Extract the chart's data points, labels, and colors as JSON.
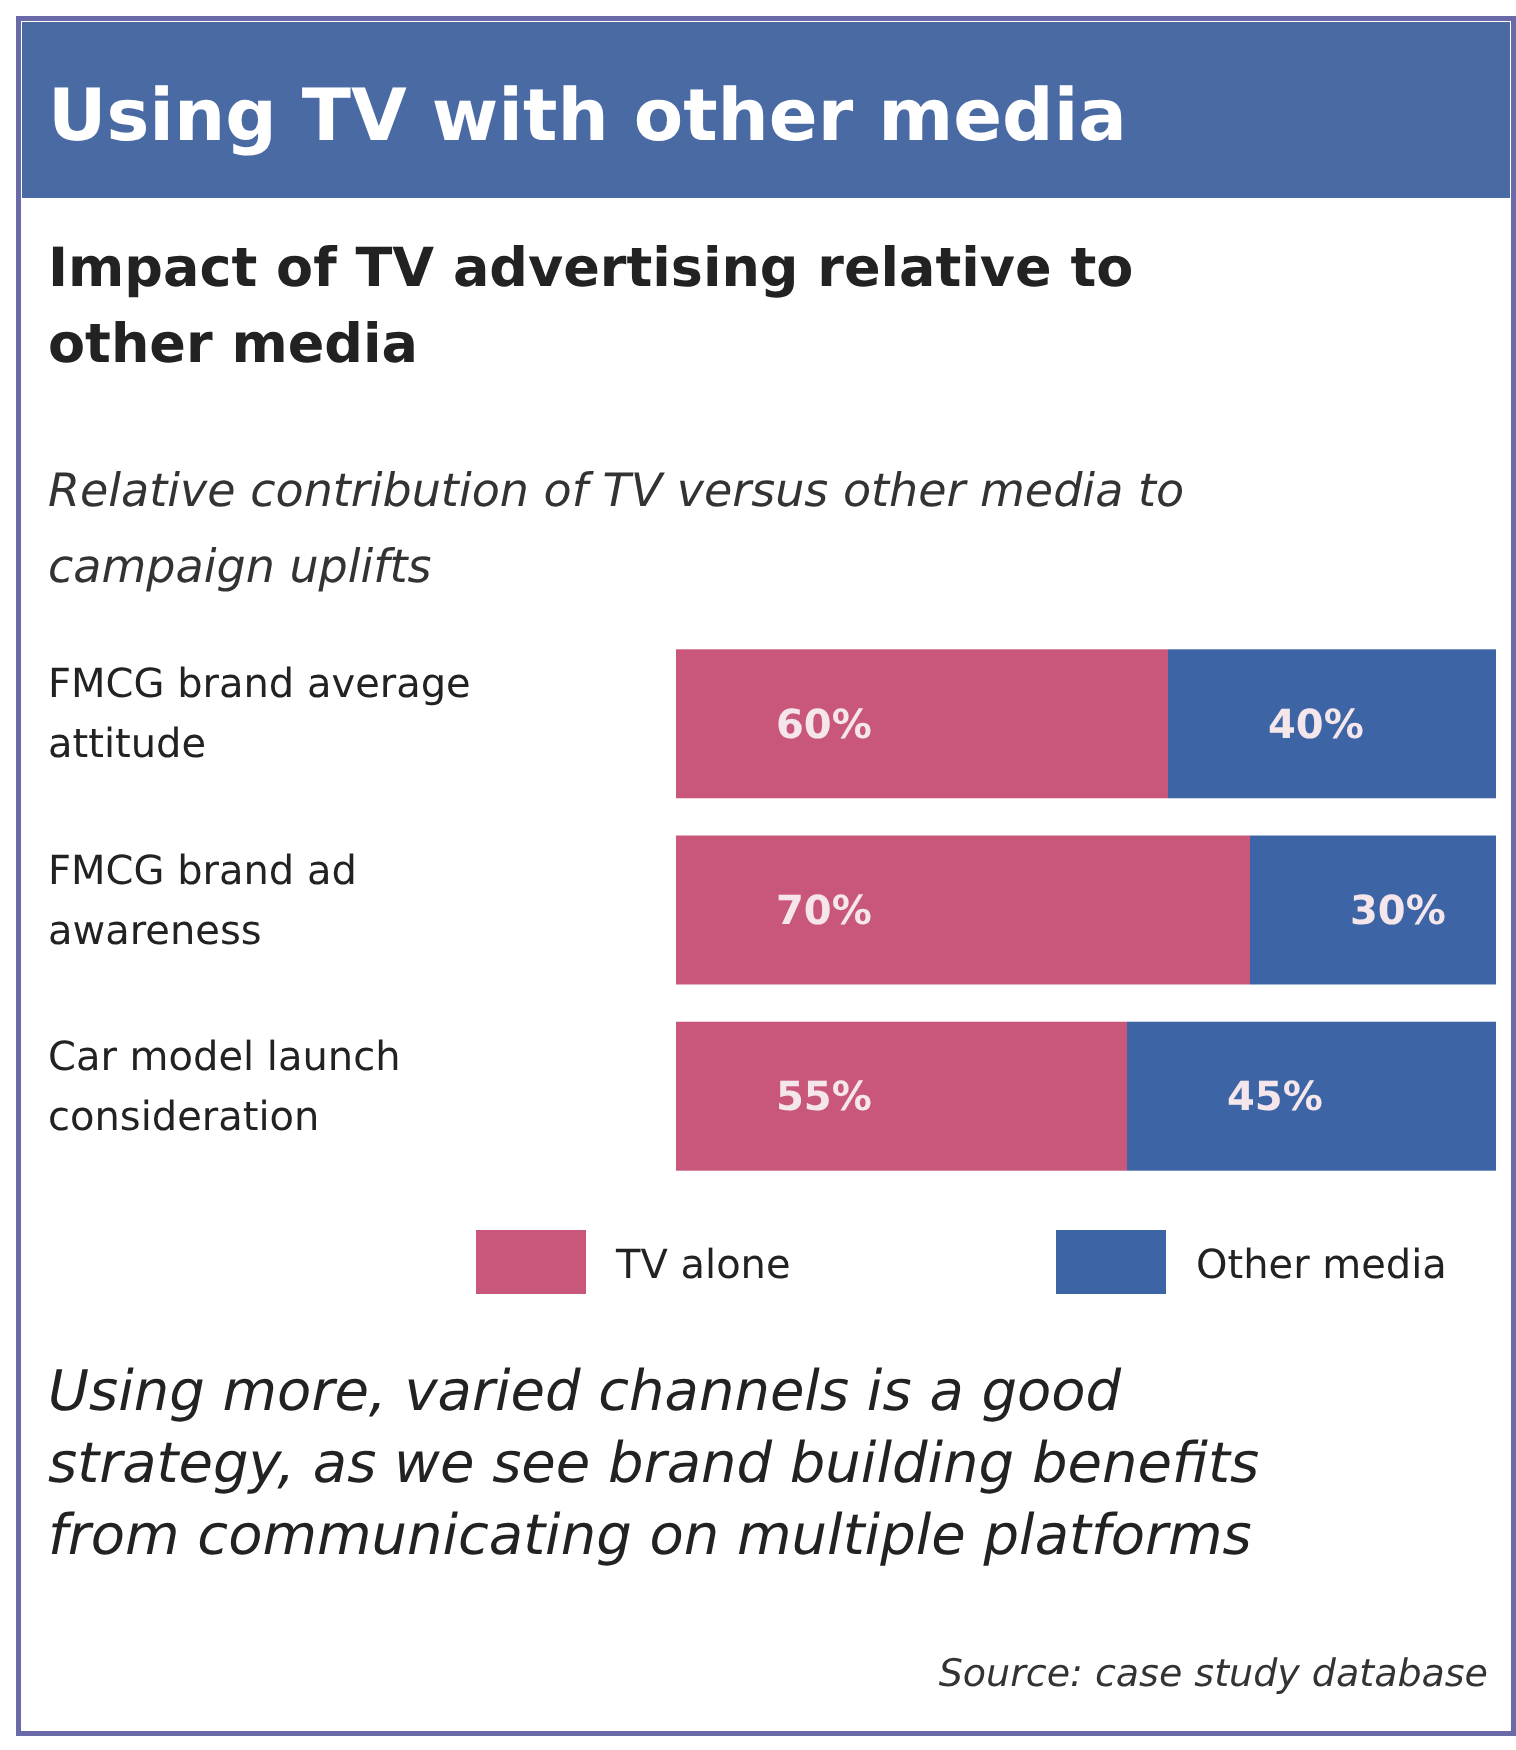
{
  "chart_data": {
    "type": "bar",
    "orientation": "horizontal",
    "stacked": true,
    "title": "Using TV with other media",
    "subtitle": "Impact of TV advertising relative to other media",
    "categories": [
      "FMCG brand average attitude",
      "FMCG brand ad awareness",
      "Car model launch consideration"
    ],
    "series": [
      {
        "name": "TV alone",
        "color": "#c9577a",
        "values": [
          60,
          70,
          55
        ],
        "value_labels": [
          "60%",
          "70%",
          "55%"
        ]
      },
      {
        "name": "Other media",
        "color": "#3d64a4",
        "values": [
          40,
          30,
          45
        ],
        "value_labels": [
          "40%",
          "30%",
          "45%"
        ]
      }
    ],
    "legend": "bottom",
    "annotations": [
      "Relative contribution of TV versus other media to campaign uplifts",
      "Using more, varied channels is a good strategy, as we see brand building benefits from communicating on multiple platforms",
      "Source: case study database"
    ]
  }
}
